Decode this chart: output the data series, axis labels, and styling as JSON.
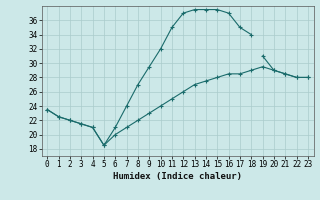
{
  "xlabel": "Humidex (Indice chaleur)",
  "bg_color": "#cce8e8",
  "line_color": "#1a6b6b",
  "grid_color": "#aacccc",
  "xlim": [
    -0.5,
    23.5
  ],
  "ylim": [
    17,
    38
  ],
  "yticks": [
    18,
    20,
    22,
    24,
    26,
    28,
    30,
    32,
    34,
    36
  ],
  "xticks": [
    0,
    1,
    2,
    3,
    4,
    5,
    6,
    7,
    8,
    9,
    10,
    11,
    12,
    13,
    14,
    15,
    16,
    17,
    18,
    19,
    20,
    21,
    22,
    23
  ],
  "line1_x": [
    0,
    1,
    2,
    3,
    4,
    5,
    6,
    7,
    8,
    9,
    10,
    11,
    12,
    13,
    14,
    15,
    16,
    17,
    18
  ],
  "line1_y": [
    23.5,
    22.5,
    22.0,
    21.5,
    21.0,
    18.5,
    21.0,
    24.0,
    27.0,
    29.5,
    32.0,
    35.0,
    37.0,
    37.5,
    37.5,
    37.5,
    37.0,
    35.0,
    34.0
  ],
  "line2_x": [
    19,
    20,
    21,
    22,
    23
  ],
  "line2_y": [
    31.0,
    29.0,
    28.5,
    28.0,
    28.0
  ],
  "line3_x": [
    0,
    1,
    2,
    3,
    4,
    5,
    6,
    7,
    8,
    9,
    10,
    11,
    12,
    13,
    14,
    15,
    16,
    17,
    18,
    19,
    20,
    21,
    22,
    23
  ],
  "line3_y": [
    23.5,
    22.5,
    22.0,
    21.5,
    21.0,
    18.5,
    20.0,
    21.0,
    22.0,
    23.0,
    24.0,
    25.0,
    26.0,
    27.0,
    27.5,
    28.0,
    28.5,
    28.5,
    29.0,
    29.5,
    29.0,
    28.5,
    28.0,
    28.0
  ]
}
